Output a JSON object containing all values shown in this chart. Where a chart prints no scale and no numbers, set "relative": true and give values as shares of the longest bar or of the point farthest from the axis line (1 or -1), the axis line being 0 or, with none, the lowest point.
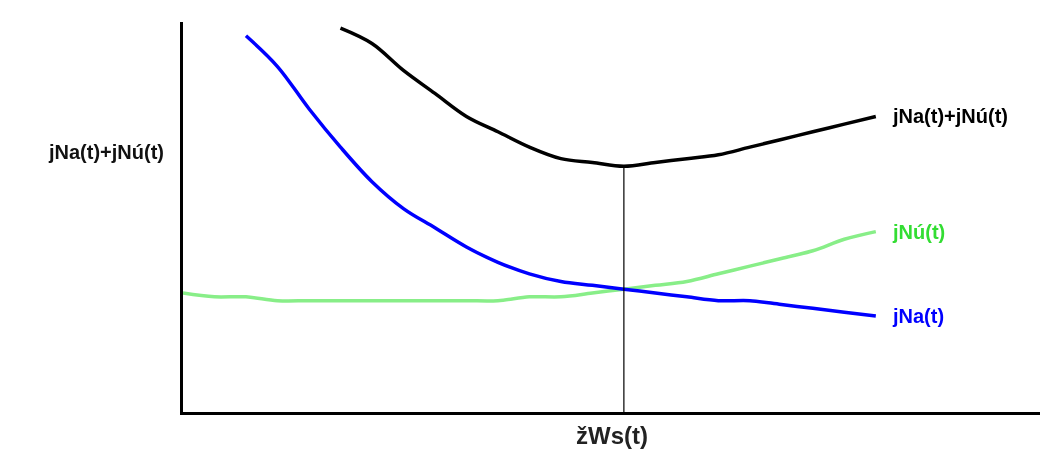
{
  "chart_data": {
    "type": "line",
    "relative": true,
    "ylabel": "jNa(t)+jNú(t)",
    "categories": [
      null,
      null,
      null,
      null,
      null,
      null,
      null,
      null,
      null,
      null,
      null,
      null,
      null,
      null,
      null,
      null,
      null,
      null,
      null,
      null,
      null,
      null,
      null
    ],
    "series": [
      {
        "name": "jNa(t)+jNú(t)",
        "color": "#000000",
        "values": [
          null,
          null,
          null,
          null,
          null,
          1.0,
          0.96,
          0.89,
          0.83,
          0.77,
          0.73,
          0.69,
          0.66,
          0.65,
          0.64,
          0.65,
          0.66,
          0.67,
          0.69,
          0.71,
          0.73,
          0.75,
          0.77
        ]
      },
      {
        "name": "jNú(t)",
        "color": "#88ee88",
        "values": [
          0.31,
          0.3,
          0.3,
          0.29,
          0.29,
          0.29,
          0.29,
          0.29,
          0.29,
          0.29,
          0.29,
          0.3,
          0.3,
          0.31,
          0.32,
          0.33,
          0.34,
          0.36,
          0.38,
          0.4,
          0.42,
          0.45,
          0.47
        ]
      },
      {
        "name": "jNa(t)",
        "color": "#0000ff",
        "values": [
          null,
          null,
          0.98,
          0.9,
          0.79,
          0.69,
          0.6,
          0.53,
          0.48,
          0.43,
          0.39,
          0.36,
          0.34,
          0.33,
          0.32,
          0.31,
          0.3,
          0.29,
          0.29,
          0.28,
          0.27,
          0.26,
          0.25
        ]
      }
    ],
    "xlabel": "žWs(t)",
    "legend": false,
    "marker": "none",
    "line_style": "solid"
  }
}
